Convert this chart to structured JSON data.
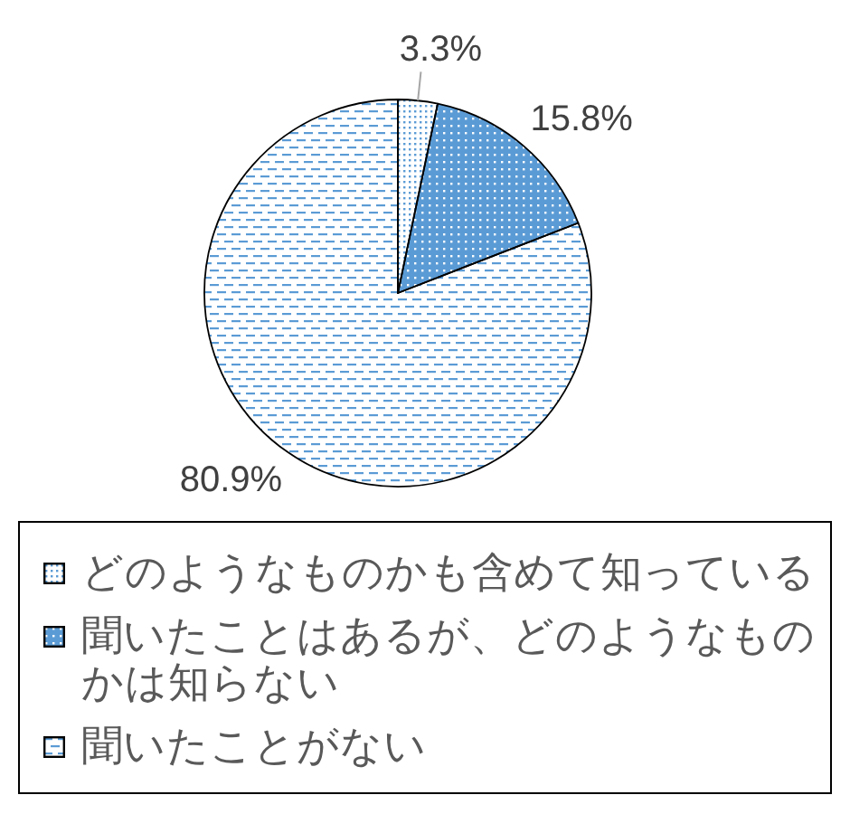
{
  "chart_data": {
    "type": "pie",
    "categories": [
      "どのようなものかも含めて知っている",
      "聞いたことはあるが、どのようなものかは知らない",
      "聞いたことがない"
    ],
    "values": [
      3.3,
      15.8,
      80.9
    ],
    "value_labels": [
      "3.3%",
      "15.8%",
      "80.9%"
    ],
    "colors": [
      "#5b9bd5",
      "#5b9bd5",
      "#5b9bd5"
    ],
    "legend": "bottom"
  }
}
